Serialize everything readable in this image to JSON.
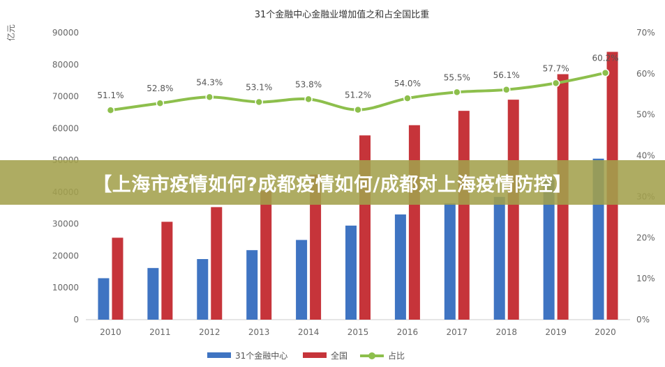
{
  "banner": {
    "text": "【上海市疫情如何?成都疫情如何/成都对上海疫情防控】"
  },
  "chart_data": {
    "type": "bar",
    "title": "31个金融中心金融业增加值之和占全国比重",
    "ylabel": "亿元",
    "ylim": [
      0,
      90000
    ],
    "yticks": [
      0,
      10000,
      20000,
      30000,
      40000,
      50000,
      60000,
      70000,
      80000,
      90000
    ],
    "ytick_labels": [
      "0",
      "10000",
      "20000",
      "30000",
      "40000",
      "50000",
      "60000",
      "70000",
      "80000",
      "90000"
    ],
    "y2lim": [
      0,
      70
    ],
    "y2ticks": [
      0,
      10,
      20,
      30,
      40,
      50,
      60,
      70
    ],
    "y2tick_labels": [
      "0%",
      "10%",
      "20%",
      "30%",
      "40%",
      "50%",
      "60%",
      "70%"
    ],
    "categories": [
      "2010",
      "2011",
      "2012",
      "2013",
      "2014",
      "2015",
      "2016",
      "2017",
      "2018",
      "2019",
      "2020"
    ],
    "series": [
      {
        "name": "31个金融中心",
        "kind": "bar",
        "color": "#3f74c2",
        "values": [
          13000,
          16200,
          19000,
          21800,
          25000,
          29500,
          33000,
          36500,
          38500,
          44000,
          50500
        ]
      },
      {
        "name": "全国",
        "kind": "bar",
        "color": "#c6343a",
        "values": [
          25700,
          30700,
          35300,
          40400,
          45500,
          57800,
          61000,
          65500,
          69000,
          77000,
          84000
        ]
      },
      {
        "name": "占比",
        "kind": "line",
        "axis": "right",
        "color": "#8dbf4c",
        "values": [
          51.1,
          52.8,
          54.3,
          53.1,
          53.8,
          51.2,
          54.0,
          55.5,
          56.1,
          57.7,
          60.2
        ],
        "labels": [
          "51.1%",
          "52.8%",
          "54.3%",
          "53.1%",
          "53.8%",
          "51.2%",
          "54.0%",
          "55.5%",
          "56.1%",
          "57.7%",
          "60.2%"
        ]
      }
    ],
    "legend": "bottom",
    "grid": false
  }
}
